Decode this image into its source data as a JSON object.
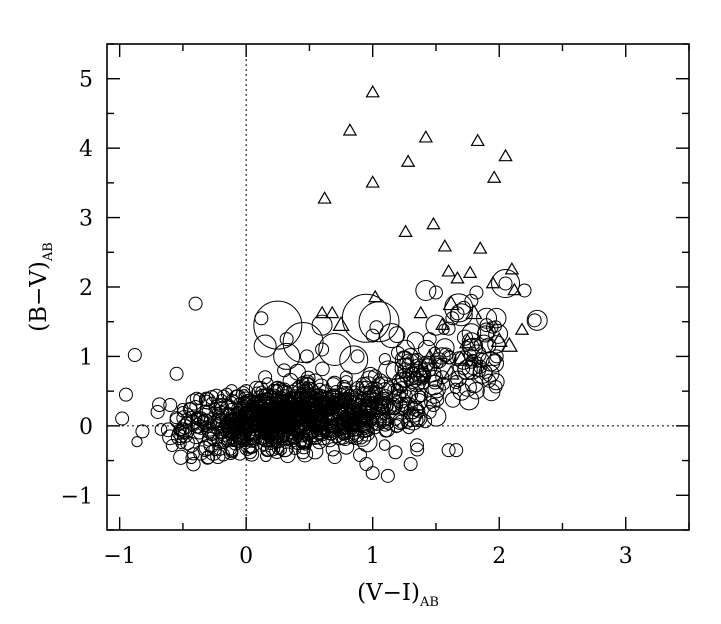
{
  "chart_data": {
    "type": "scatter",
    "title": "",
    "xlabel": "(V−I)",
    "xlabel_sub": "AB",
    "ylabel": "(B−V)",
    "ylabel_sub": "AB",
    "xlim": [
      -1.1,
      3.5
    ],
    "ylim": [
      -1.5,
      5.5
    ],
    "xticks": [
      -1,
      0,
      1,
      2,
      3
    ],
    "yticks": [
      -1,
      0,
      1,
      2,
      3,
      4,
      5
    ],
    "xtick_labels": [
      "−1",
      "0",
      "1",
      "2",
      "3"
    ],
    "ytick_labels": [
      "−1",
      "0",
      "1",
      "2",
      "3",
      "4",
      "5"
    ],
    "reference_lines": {
      "x": 0,
      "y": 0,
      "style": "dotted"
    },
    "grid": false,
    "legend": "none",
    "series": [
      {
        "marker": "open-triangle",
        "points": [
          {
            "x": 1.0,
            "y": 4.8
          },
          {
            "x": 0.82,
            "y": 4.25
          },
          {
            "x": 1.42,
            "y": 4.15
          },
          {
            "x": 1.83,
            "y": 4.1
          },
          {
            "x": 2.05,
            "y": 3.88
          },
          {
            "x": 1.28,
            "y": 3.8
          },
          {
            "x": 1.96,
            "y": 3.57
          },
          {
            "x": 1.0,
            "y": 3.5
          },
          {
            "x": 0.62,
            "y": 3.27
          },
          {
            "x": 1.48,
            "y": 2.9
          },
          {
            "x": 1.26,
            "y": 2.79
          },
          {
            "x": 1.57,
            "y": 2.58
          },
          {
            "x": 1.85,
            "y": 2.55
          },
          {
            "x": 1.6,
            "y": 2.22
          },
          {
            "x": 1.77,
            "y": 2.2
          },
          {
            "x": 2.1,
            "y": 2.25
          },
          {
            "x": 1.67,
            "y": 2.12
          },
          {
            "x": 1.95,
            "y": 2.05
          },
          {
            "x": 2.12,
            "y": 1.95
          },
          {
            "x": 1.02,
            "y": 1.85
          },
          {
            "x": 0.6,
            "y": 1.62
          },
          {
            "x": 0.68,
            "y": 1.62
          },
          {
            "x": 1.38,
            "y": 1.62
          },
          {
            "x": 1.55,
            "y": 1.45
          },
          {
            "x": 2.18,
            "y": 1.38
          },
          {
            "x": 1.75,
            "y": 1.2
          },
          {
            "x": 2.0,
            "y": 1.22
          },
          {
            "x": 1.45,
            "y": 0.98
          },
          {
            "x": 1.7,
            "y": 0.95
          },
          {
            "x": 1.62,
            "y": 0.75
          },
          {
            "x": 1.38,
            "y": 0.78
          },
          {
            "x": 1.62,
            "y": 1.75
          },
          {
            "x": 1.8,
            "y": 1.62
          },
          {
            "x": 2.08,
            "y": 1.15
          },
          {
            "x": 0.75,
            "y": 1.45
          }
        ]
      },
      {
        "marker": "open-circle",
        "notes": "dense cluster of roughly 1,000 galaxies",
        "points": [
          {
            "x": -0.95,
            "y": 0.45
          },
          {
            "x": -0.88,
            "y": 1.02
          },
          {
            "x": -0.4,
            "y": 1.76
          },
          {
            "x": -0.82,
            "y": -0.08
          },
          {
            "x": -0.55,
            "y": 0.75
          },
          {
            "x": -0.6,
            "y": 0.3
          },
          {
            "x": -0.7,
            "y": 0.2
          },
          {
            "x": -0.3,
            "y": -0.45
          },
          {
            "x": -0.05,
            "y": -0.4
          },
          {
            "x": 0.05,
            "y": -0.3
          },
          {
            "x": 0.95,
            "y": -0.55
          },
          {
            "x": 1.0,
            "y": -0.68
          },
          {
            "x": 1.12,
            "y": -0.72
          },
          {
            "x": 1.3,
            "y": -0.55
          },
          {
            "x": 1.6,
            "y": -0.35
          },
          {
            "x": 1.66,
            "y": -0.35
          },
          {
            "x": 0.45,
            "y": -0.38
          },
          {
            "x": 0.7,
            "y": -0.45
          },
          {
            "x": 0.9,
            "y": -0.42
          },
          {
            "x": 1.18,
            "y": -0.38
          },
          {
            "x": 1.35,
            "y": -0.28
          },
          {
            "x": 0.32,
            "y": 1.25
          },
          {
            "x": 0.12,
            "y": 1.55
          },
          {
            "x": 0.48,
            "y": 1.0
          },
          {
            "x": 0.6,
            "y": 1.1
          },
          {
            "x": 0.88,
            "y": 1.0
          },
          {
            "x": 1.0,
            "y": 1.3
          },
          {
            "x": 1.03,
            "y": 1.42
          },
          {
            "x": 1.2,
            "y": 1.05
          },
          {
            "x": 1.35,
            "y": 0.95
          },
          {
            "x": 1.45,
            "y": 1.25
          },
          {
            "x": 1.48,
            "y": 0.3
          },
          {
            "x": 1.45,
            "y": 0.2
          },
          {
            "x": 1.55,
            "y": 0.7
          },
          {
            "x": 1.85,
            "y": 0.85
          },
          {
            "x": 1.92,
            "y": 0.65
          },
          {
            "x": 1.98,
            "y": 1.0
          },
          {
            "x": 1.63,
            "y": 1.55
          },
          {
            "x": 1.67,
            "y": 1.62
          },
          {
            "x": 1.72,
            "y": 1.7
          },
          {
            "x": 1.78,
            "y": 1.8
          },
          {
            "x": 1.82,
            "y": 1.92
          },
          {
            "x": 2.05,
            "y": 2.05
          },
          {
            "x": 2.2,
            "y": 1.95
          },
          {
            "x": 2.28,
            "y": 1.52
          },
          {
            "x": 1.5,
            "y": 1.92
          },
          {
            "x": 1.6,
            "y": 1.4
          },
          {
            "x": 1.9,
            "y": 1.45
          },
          {
            "x": 0.95,
            "y": 0.55
          },
          {
            "x": 0.82,
            "y": 0.35
          },
          {
            "x": 0.25,
            "y": 0.55
          },
          {
            "x": 0.1,
            "y": 0.0
          },
          {
            "x": 0.2,
            "y": 0.15
          },
          {
            "x": 0.35,
            "y": 0.05
          },
          {
            "x": 0.4,
            "y": 0.25
          },
          {
            "x": 0.5,
            "y": 0.15
          },
          {
            "x": 0.55,
            "y": 0.05
          },
          {
            "x": 0.6,
            "y": 0.3
          },
          {
            "x": -0.1,
            "y": 0.1
          },
          {
            "x": -0.2,
            "y": 0.3
          },
          {
            "x": 0.0,
            "y": 0.5
          },
          {
            "x": 0.15,
            "y": 0.7
          },
          {
            "x": 0.3,
            "y": 0.8
          }
        ]
      }
    ]
  }
}
